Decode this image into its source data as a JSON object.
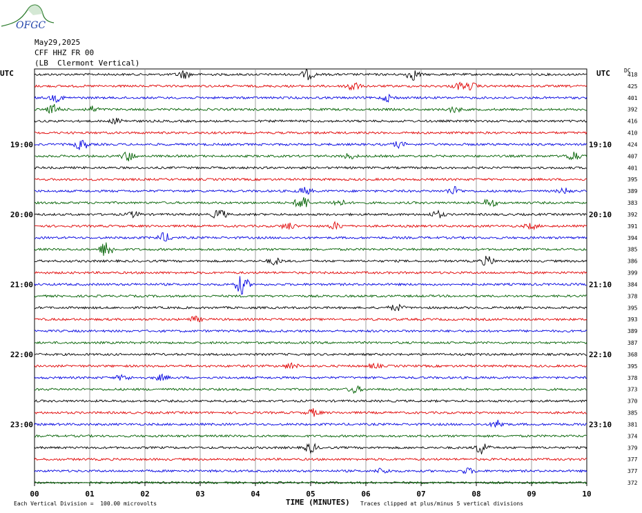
{
  "logo": {
    "text": "OFGC"
  },
  "header": {
    "date": "May29,2025",
    "station": "CFF HHZ FR 00",
    "location": "(LB  Clermont Vertical)"
  },
  "axis_labels": {
    "utc_left": "UTC",
    "utc_right": "UTC",
    "dc": "DC",
    "x_title": "TIME (MINUTES)"
  },
  "footer": {
    "scale_note": "Each Vertical Division =  100.00 microvolts",
    "clip_note": "Traces clipped at plus/minus 5 vertical divisions"
  },
  "chart_data": {
    "type": "line",
    "title": "",
    "xlabel": "TIME (MINUTES)",
    "ylabel": "",
    "xlim": [
      0,
      10
    ],
    "x_ticks": [
      "00",
      "01",
      "02",
      "03",
      "04",
      "05",
      "06",
      "07",
      "08",
      "09",
      "10"
    ],
    "trace_colors": [
      "#000000",
      "#e00000",
      "#0000e0",
      "#006000"
    ],
    "left_time_labels": [
      {
        "trace": 6,
        "label": "19:00"
      },
      {
        "trace": 12,
        "label": "20:00"
      },
      {
        "trace": 18,
        "label": "21:00"
      },
      {
        "trace": 24,
        "label": "22:00"
      },
      {
        "trace": 30,
        "label": "23:00"
      }
    ],
    "right_time_labels": [
      {
        "trace": 6,
        "label": "19:10"
      },
      {
        "trace": 12,
        "label": "20:10"
      },
      {
        "trace": 18,
        "label": "21:10"
      },
      {
        "trace": 24,
        "label": "22:10"
      },
      {
        "trace": 30,
        "label": "23:10"
      }
    ],
    "dc_offsets": [
      "418",
      "425",
      "401",
      "392",
      "416",
      "410",
      "424",
      "407",
      "401",
      "395",
      "389",
      "383",
      "392",
      "391",
      "394",
      "385",
      "386",
      "399",
      "384",
      "378",
      "395",
      "393",
      "389",
      "387",
      "368",
      "395",
      "378",
      "373",
      "370",
      "385",
      "381",
      "374",
      "379",
      "377",
      "377",
      "372"
    ],
    "events": [
      {
        "trace": 0,
        "minute": 2.7,
        "amp": 6
      },
      {
        "trace": 0,
        "minute": 4.95,
        "amp": 7
      },
      {
        "trace": 0,
        "minute": 6.85,
        "amp": 8
      },
      {
        "trace": 1,
        "minute": 5.75,
        "amp": 8
      },
      {
        "trace": 1,
        "minute": 7.7,
        "amp": 5
      },
      {
        "trace": 1,
        "minute": 7.9,
        "amp": 5
      },
      {
        "trace": 2,
        "minute": 0.4,
        "amp": 5
      },
      {
        "trace": 2,
        "minute": 6.4,
        "amp": 5
      },
      {
        "trace": 3,
        "minute": 0.35,
        "amp": 7
      },
      {
        "trace": 3,
        "minute": 1.05,
        "amp": 4
      },
      {
        "trace": 3,
        "minute": 7.6,
        "amp": 4
      },
      {
        "trace": 4,
        "minute": 1.5,
        "amp": 4
      },
      {
        "trace": 6,
        "minute": 0.85,
        "amp": 8
      },
      {
        "trace": 6,
        "minute": 6.6,
        "amp": 4
      },
      {
        "trace": 7,
        "minute": 1.7,
        "amp": 7
      },
      {
        "trace": 7,
        "minute": 5.7,
        "amp": 4
      },
      {
        "trace": 7,
        "minute": 9.75,
        "amp": 8
      },
      {
        "trace": 10,
        "minute": 4.9,
        "amp": 5
      },
      {
        "trace": 10,
        "minute": 7.6,
        "amp": 6
      },
      {
        "trace": 10,
        "minute": 9.6,
        "amp": 4
      },
      {
        "trace": 11,
        "minute": 4.85,
        "amp": 11
      },
      {
        "trace": 11,
        "minute": 5.5,
        "amp": 5
      },
      {
        "trace": 11,
        "minute": 8.25,
        "amp": 6
      },
      {
        "trace": 12,
        "minute": 1.8,
        "amp": 4
      },
      {
        "trace": 12,
        "minute": 3.35,
        "amp": 8
      },
      {
        "trace": 12,
        "minute": 7.3,
        "amp": 5
      },
      {
        "trace": 13,
        "minute": 4.6,
        "amp": 5
      },
      {
        "trace": 13,
        "minute": 5.45,
        "amp": 5
      },
      {
        "trace": 13,
        "minute": 9.0,
        "amp": 4
      },
      {
        "trace": 14,
        "minute": 2.35,
        "amp": 7
      },
      {
        "trace": 15,
        "minute": 1.3,
        "amp": 12
      },
      {
        "trace": 16,
        "minute": 4.35,
        "amp": 5
      },
      {
        "trace": 16,
        "minute": 8.2,
        "amp": 7
      },
      {
        "trace": 18,
        "minute": 3.75,
        "amp": 14
      },
      {
        "trace": 20,
        "minute": 6.55,
        "amp": 5
      },
      {
        "trace": 21,
        "minute": 2.9,
        "amp": 4
      },
      {
        "trace": 25,
        "minute": 4.65,
        "amp": 4
      },
      {
        "trace": 25,
        "minute": 6.15,
        "amp": 3
      },
      {
        "trace": 26,
        "minute": 1.6,
        "amp": 4
      },
      {
        "trace": 26,
        "minute": 2.3,
        "amp": 4
      },
      {
        "trace": 27,
        "minute": 5.8,
        "amp": 5
      },
      {
        "trace": 29,
        "minute": 5.05,
        "amp": 5
      },
      {
        "trace": 30,
        "minute": 8.4,
        "amp": 6
      },
      {
        "trace": 32,
        "minute": 5.0,
        "amp": 7
      },
      {
        "trace": 32,
        "minute": 8.1,
        "amp": 10
      },
      {
        "trace": 34,
        "minute": 6.3,
        "amp": 4
      },
      {
        "trace": 34,
        "minute": 7.85,
        "amp": 4
      }
    ]
  }
}
